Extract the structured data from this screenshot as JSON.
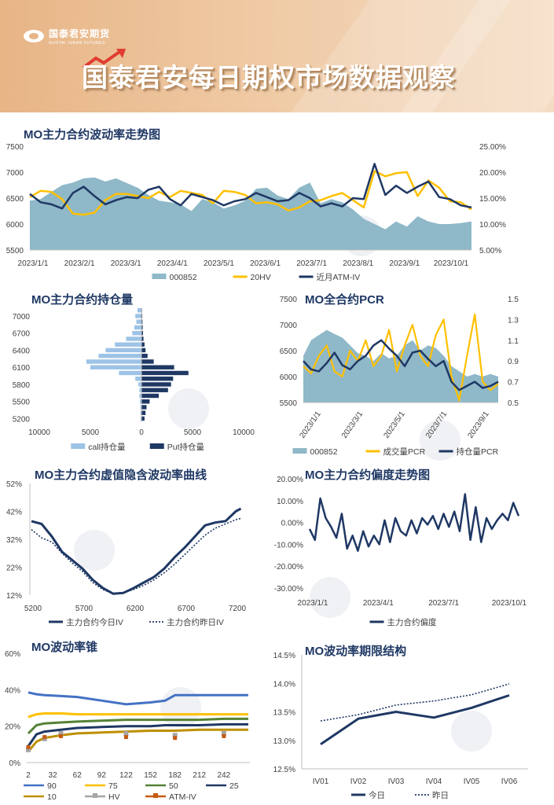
{
  "header": {
    "logo_cn": "国泰君安期货",
    "logo_en": "GUOTAI JUNAN FUTURES",
    "title": "国泰君安每日期权市场数据观察"
  },
  "colors": {
    "navy": "#1f3864",
    "gold": "#ffc000",
    "teal": "#8fb8c8",
    "lightblue": "#9dc3e6",
    "blue": "#4472c4",
    "orange": "#c55a11",
    "green": "#548235",
    "gray": "#a5a5a5"
  },
  "chart_data": [
    {
      "id": "iv_trend",
      "type": "line",
      "title": "MO主力合约波动率走势图",
      "x_ticks": [
        "2023/1/1",
        "2023/2/1",
        "2023/3/1",
        "2023/4/1",
        "2023/5/1",
        "2023/6/1",
        "2023/7/1",
        "2023/8/1",
        "2023/9/1",
        "2023/10/1"
      ],
      "y_left_ticks": [
        "7500",
        "7000",
        "6500",
        "6000",
        "5500"
      ],
      "y_right_ticks": [
        "25.00%",
        "20.00%",
        "15.00%",
        "10.00%",
        "5.00%"
      ],
      "ylim_left": [
        5500,
        7500
      ],
      "ylim_right": [
        5,
        25
      ],
      "legend": [
        "000852",
        "20HV",
        "近月ATM-IV"
      ],
      "series": [
        {
          "name": "000852",
          "axis": "left",
          "style": "area",
          "values": [
            6450,
            6480,
            6620,
            6750,
            6800,
            6880,
            6900,
            6820,
            6880,
            6790,
            6700,
            6560,
            6450,
            6420,
            6380,
            6250,
            6480,
            6420,
            6300,
            6360,
            6450,
            6680,
            6700,
            6550,
            6480,
            6700,
            6800,
            6400,
            6480,
            6420,
            6280,
            6100,
            6000,
            5900,
            6050,
            5950,
            6150,
            6050,
            6000,
            6000,
            6020,
            6050
          ]
        },
        {
          "name": "20HV",
          "axis": "right",
          "style": "line",
          "values": [
            15.2,
            16.4,
            16.2,
            14.8,
            12.0,
            11.8,
            12.2,
            14.6,
            15.8,
            15.8,
            15.4,
            15.0,
            16.2,
            15.2,
            16.4,
            16.0,
            15.6,
            14.0,
            16.4,
            16.2,
            15.6,
            14.0,
            14.2,
            13.8,
            12.6,
            13.2,
            14.4,
            14.6,
            15.4,
            16.0,
            14.6,
            13.2,
            20.2,
            19.2,
            19.8,
            20.0,
            15.4,
            18.4,
            17.0,
            14.4,
            14.2,
            12.8
          ]
        },
        {
          "name": "近月ATM-IV",
          "axis": "right",
          "style": "line",
          "values": [
            15.8,
            14.2,
            13.8,
            13.0,
            16.0,
            17.2,
            15.4,
            13.8,
            14.6,
            15.2,
            15.0,
            16.6,
            17.2,
            14.8,
            13.6,
            15.8,
            15.2,
            14.6,
            13.6,
            14.4,
            14.8,
            16.0,
            15.2,
            14.4,
            14.6,
            16.0,
            15.0,
            13.4,
            14.0,
            13.4,
            15.0,
            14.8,
            21.6,
            15.6,
            17.4,
            16.0,
            17.2,
            18.2,
            15.2,
            14.8,
            13.6,
            13.2
          ]
        }
      ]
    },
    {
      "id": "open_interest",
      "type": "bar",
      "title": "MO主力合约持仓量",
      "y_ticks": [
        "7000",
        "6700",
        "6400",
        "6100",
        "5800",
        "5500",
        "5200"
      ],
      "x_ticks": [
        "10000",
        "5000",
        "0",
        "5000",
        "10000"
      ],
      "legend": [
        "call持仓量",
        "Put持仓量"
      ],
      "strikes": [
        7100,
        7000,
        6900,
        6800,
        6700,
        6600,
        6500,
        6400,
        6300,
        6200,
        6100,
        6000,
        5900,
        5800,
        5700,
        5600,
        5500,
        5400,
        5300,
        5200
      ],
      "series": [
        {
          "name": "call持仓量",
          "values": [
            400,
            600,
            500,
            700,
            900,
            1500,
            2600,
            3500,
            4200,
            5400,
            5000,
            2200,
            600,
            300,
            200,
            200,
            150,
            100,
            100,
            80
          ]
        },
        {
          "name": "Put持仓量",
          "values": [
            60,
            80,
            100,
            120,
            150,
            200,
            300,
            400,
            600,
            1200,
            3200,
            4600,
            3100,
            2900,
            2600,
            1700,
            800,
            500,
            400,
            300
          ]
        }
      ]
    },
    {
      "id": "pcr",
      "type": "line",
      "title": "MO全合约PCR",
      "x_ticks": [
        "2023/1/1",
        "2023/3/1",
        "2023/5/1",
        "2023/7/1",
        "2023/9/1"
      ],
      "y_left_ticks": [
        "7500",
        "7000",
        "6500",
        "6000",
        "5500"
      ],
      "y_right_ticks": [
        "1.5",
        "1.3",
        "1.1",
        "0.9",
        "0.7",
        "0.5"
      ],
      "ylim_left": [
        5500,
        7500
      ],
      "ylim_right": [
        0.5,
        1.5
      ],
      "legend": [
        "000852",
        "成交量PCR",
        "持仓量PCR"
      ],
      "series": [
        {
          "name": "000852",
          "axis": "left",
          "style": "area",
          "values": [
            6400,
            6700,
            6800,
            6900,
            6820,
            6750,
            6600,
            6450,
            6400,
            6300,
            6450,
            6350,
            6400,
            6600,
            6700,
            6500,
            6600,
            6550,
            6400,
            6200,
            6100,
            6000,
            6050,
            6000,
            6050,
            6000
          ]
        },
        {
          "name": "成交量PCR",
          "axis": "right",
          "style": "line",
          "values": [
            0.85,
            0.78,
            0.95,
            1.05,
            0.8,
            0.75,
            1.0,
            0.9,
            1.1,
            0.85,
            0.95,
            1.2,
            0.8,
            1.05,
            1.25,
            0.95,
            0.85,
            1.15,
            1.3,
            0.75,
            0.52,
            0.95,
            1.35,
            0.7,
            0.62,
            0.68
          ]
        },
        {
          "name": "持仓量PCR",
          "axis": "right",
          "style": "line",
          "values": [
            0.9,
            0.82,
            0.8,
            0.88,
            0.98,
            0.86,
            0.82,
            0.9,
            0.95,
            1.05,
            1.1,
            1.02,
            0.95,
            0.85,
            0.98,
            1.0,
            0.92,
            0.85,
            0.9,
            0.7,
            0.62,
            0.66,
            0.7,
            0.64,
            0.66,
            0.7
          ]
        }
      ]
    },
    {
      "id": "smile",
      "type": "line",
      "title": "MO主力合约虚值隐含波动率曲线",
      "x_ticks": [
        "5200",
        "5700",
        "6200",
        "6700",
        "7200"
      ],
      "y_ticks": [
        "52%",
        "42%",
        "32%",
        "22%",
        "12%"
      ],
      "xlim": [
        5200,
        7400
      ],
      "ylim": [
        12,
        52
      ],
      "legend": [
        "主力合约今日IV",
        "主力合约昨日IV"
      ],
      "x": [
        5200,
        5300,
        5400,
        5500,
        5600,
        5700,
        5800,
        5900,
        6000,
        6100,
        6200,
        6300,
        6400,
        6500,
        6600,
        6700,
        6800,
        6900,
        7000,
        7100,
        7200,
        7250
      ],
      "series": [
        {
          "name": "主力合约今日IV",
          "values": [
            38.5,
            37.5,
            33.0,
            27.5,
            24.5,
            21.5,
            17.5,
            14.5,
            12.5,
            12.8,
            14.5,
            16.5,
            18.5,
            21.5,
            25.5,
            29.0,
            33.0,
            37.0,
            38.0,
            38.5,
            42.0,
            43.0
          ]
        },
        {
          "name": "主力合约昨日IV",
          "values": [
            35.5,
            32.5,
            31.0,
            27.0,
            23.5,
            20.5,
            16.5,
            14.0,
            12.5,
            12.8,
            14.0,
            15.5,
            17.5,
            20.0,
            23.0,
            26.5,
            30.0,
            33.5,
            36.0,
            37.5,
            39.0,
            39.5
          ]
        }
      ]
    },
    {
      "id": "skew",
      "type": "line",
      "title": "MO主力合约偏度走势图",
      "x_ticks": [
        "2023/1/1",
        "2023/4/1",
        "2023/7/1",
        "2023/10/1"
      ],
      "y_ticks": [
        "20.00%",
        "10.00%",
        "0.00%",
        "-10.00%",
        "-20.00%",
        "-30.00%"
      ],
      "ylim": [
        -30,
        20
      ],
      "legend": [
        "主力合约偏度"
      ],
      "series": [
        {
          "name": "主力合约偏度",
          "values": [
            -3,
            -8,
            11,
            2,
            -2,
            -7,
            4,
            -12,
            -6,
            -13,
            -4,
            -11,
            -6,
            -10,
            1,
            -9,
            2,
            -4,
            -6,
            1,
            -5,
            2,
            -1,
            3,
            -3,
            4,
            -2,
            5,
            -4,
            13,
            -8,
            7,
            -9,
            2,
            -3,
            1,
            4,
            1,
            9,
            3
          ]
        }
      ]
    },
    {
      "id": "vol_cone",
      "type": "line",
      "title": "MO波动率锥",
      "x_ticks": [
        "2",
        "32",
        "62",
        "92",
        "122",
        "152",
        "182",
        "212",
        "242"
      ],
      "y_ticks": [
        "60%",
        "40%",
        "20%",
        "0%"
      ],
      "xlim": [
        2,
        272
      ],
      "ylim": [
        0,
        60
      ],
      "legend": [
        "90",
        "75",
        "50",
        "25",
        "10",
        "HV",
        "ATM-IV"
      ],
      "x": [
        2,
        12,
        22,
        42,
        62,
        92,
        122,
        152,
        170,
        182,
        212,
        242,
        272
      ],
      "series": [
        {
          "name": "90",
          "values": [
            38.5,
            37.5,
            37.0,
            36.5,
            36.0,
            34.0,
            32.0,
            33.0,
            34.0,
            37.0,
            37.0,
            37.0,
            37.0
          ]
        },
        {
          "name": "75",
          "values": [
            25.0,
            26.5,
            27.0,
            27.0,
            26.5,
            26.5,
            26.5,
            26.5,
            26.5,
            26.5,
            26.5,
            26.5,
            26.5
          ]
        },
        {
          "name": "50",
          "values": [
            16.0,
            20.5,
            21.5,
            22.0,
            22.5,
            23.0,
            23.5,
            23.5,
            23.5,
            23.5,
            23.5,
            24.0,
            24.0
          ]
        },
        {
          "name": "25",
          "values": [
            9.0,
            15.5,
            17.0,
            18.0,
            19.0,
            19.5,
            20.0,
            20.0,
            20.5,
            20.5,
            20.5,
            21.0,
            21.0
          ]
        },
        {
          "name": "10",
          "values": [
            6.0,
            11.5,
            13.5,
            15.0,
            16.0,
            16.5,
            17.0,
            17.5,
            17.5,
            17.5,
            18.0,
            18.0,
            18.0
          ]
        }
      ],
      "markers": [
        {
          "name": "HV",
          "x": [
            2,
            22,
            42,
            122,
            182,
            242
          ],
          "values": [
            7.0,
            13.0,
            16.0,
            16.0,
            15.0,
            16.0
          ]
        },
        {
          "name": "ATM-IV",
          "x": [
            2,
            22,
            42,
            122,
            182,
            242
          ],
          "values": [
            8.5,
            14.0,
            14.5,
            14.0,
            13.5,
            14.5
          ]
        }
      ]
    },
    {
      "id": "term_structure",
      "type": "line",
      "title": "MO波动率期限结构",
      "categories": [
        "IV01",
        "IV02",
        "IV03",
        "IV04",
        "IV05",
        "IV06"
      ],
      "y_ticks": [
        "14.5%",
        "14.0%",
        "13.5%",
        "13.0%",
        "12.5%"
      ],
      "ylim": [
        12.5,
        14.5
      ],
      "legend": [
        "今日",
        "昨日"
      ],
      "series": [
        {
          "name": "今日",
          "values": [
            12.93,
            13.38,
            13.5,
            13.4,
            13.57,
            13.79
          ]
        },
        {
          "name": "昨日",
          "values": [
            13.34,
            13.45,
            13.62,
            13.69,
            13.8,
            13.99
          ]
        }
      ]
    }
  ]
}
